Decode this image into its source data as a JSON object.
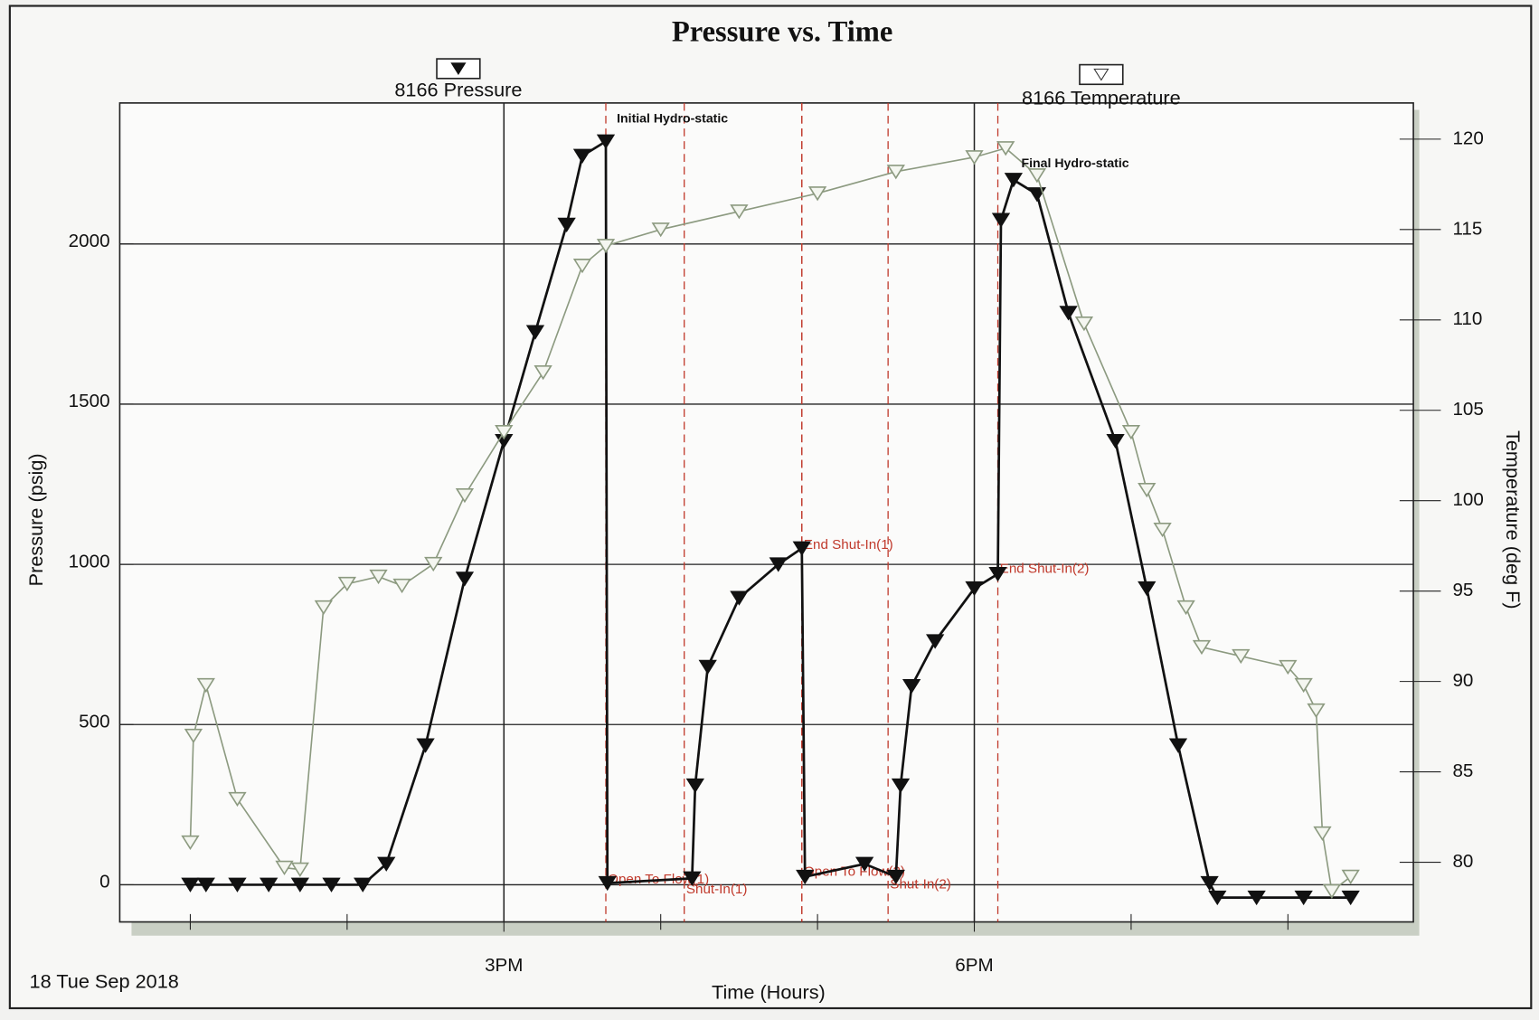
{
  "chart_data": {
    "type": "line",
    "title": "Pressure vs. Time",
    "xlabel": "Time (Hours)",
    "ylabel": "Pressure (psig)",
    "y2label": "Temperature (deg F)",
    "date_label": "18 Tue Sep 2018",
    "xlim": [
      12.55,
      20.8
    ],
    "xticks": [
      {
        "value": 15,
        "label": "3PM"
      },
      {
        "value": 18,
        "label": "6PM"
      }
    ],
    "xminor_ticks": [
      13,
      14,
      16,
      17,
      19,
      20
    ],
    "ylim": [
      -116,
      2440
    ],
    "yticks": [
      0,
      500,
      1000,
      1500,
      2000
    ],
    "y2lim": [
      76.7,
      122
    ],
    "y2ticks": [
      80,
      85,
      90,
      95,
      100,
      105,
      110,
      115,
      120
    ],
    "grid": true,
    "series": [
      {
        "name": "8166 Pressure",
        "color": "#111111",
        "marker": "filled",
        "x": [
          13.0,
          13.1,
          13.3,
          13.5,
          13.7,
          13.9,
          14.1,
          14.25,
          14.5,
          14.75,
          15.0,
          15.2,
          15.4,
          15.5,
          15.65,
          15.66,
          16.2,
          16.22,
          16.3,
          16.5,
          16.75,
          16.9,
          16.92,
          17.3,
          17.5,
          17.53,
          17.6,
          17.75,
          18.0,
          18.15,
          18.17,
          18.25,
          18.4,
          18.6,
          18.9,
          19.1,
          19.3,
          19.5,
          19.55,
          19.8,
          20.1,
          20.4
        ],
        "values": [
          0,
          0,
          0,
          0,
          0,
          0,
          0,
          65,
          435,
          955,
          1385,
          1725,
          2060,
          2275,
          2320,
          5,
          20,
          310,
          680,
          895,
          1000,
          1050,
          25,
          65,
          25,
          310,
          620,
          760,
          925,
          970,
          2075,
          2200,
          2155,
          1785,
          1385,
          925,
          435,
          5,
          -40,
          -40,
          -40,
          -40
        ]
      },
      {
        "name": "8166 Temperature",
        "color": "#8c9a80",
        "marker": "hollow",
        "axis": "y2",
        "x": [
          13.0,
          13.02,
          13.1,
          13.3,
          13.6,
          13.7,
          13.85,
          14.0,
          14.2,
          14.35,
          14.55,
          14.75,
          15.0,
          15.25,
          15.5,
          15.65,
          16.0,
          16.5,
          17.0,
          17.5,
          18.0,
          18.2,
          18.4,
          18.7,
          19.0,
          19.1,
          19.2,
          19.35,
          19.45,
          19.7,
          20.0,
          20.1,
          20.18,
          20.22,
          20.28,
          20.4
        ],
        "values": [
          81.1,
          87,
          89.8,
          83.5,
          79.7,
          79.6,
          94.1,
          95.4,
          95.8,
          95.3,
          96.5,
          100.3,
          103.8,
          107.1,
          113,
          114.1,
          115,
          116,
          117,
          118.2,
          119,
          119.5,
          118,
          109.8,
          103.8,
          100.6,
          98.4,
          94.1,
          91.9,
          91.4,
          90.8,
          89.8,
          88.4,
          81.6,
          78.4,
          79.2
        ]
      }
    ],
    "events": [
      {
        "text": "Open To Flow(1)",
        "x": 15.65,
        "y": 15
      },
      {
        "text": "Shut-In(1)",
        "x": 16.15,
        "y": -15
      },
      {
        "text": "End Shut-In(1)",
        "x": 16.9,
        "y": 1060
      },
      {
        "text": "Open To Flow(2)",
        "x": 16.9,
        "y": 40
      },
      {
        "text": "Shut-In(2)",
        "x": 17.45,
        "y": 0
      },
      {
        "text": "End Shut-In(2)",
        "x": 18.15,
        "y": 985
      }
    ],
    "annotations": [
      {
        "text": "Initial Hydro-static",
        "x": 15.72,
        "y": 2390
      },
      {
        "text": "Final Hydro-static",
        "x": 18.3,
        "y": 2250
      }
    ]
  }
}
